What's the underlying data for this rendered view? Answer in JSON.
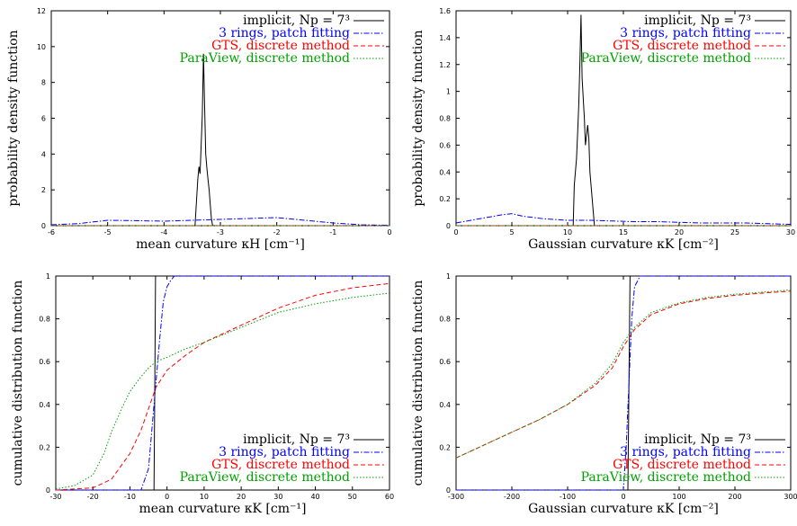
{
  "chart_data": [
    {
      "type": "line",
      "xlabel": "mean curvature κH [cm⁻¹]",
      "ylabel": "probability density function",
      "xlim": [
        -6,
        0
      ],
      "ylim": [
        0,
        12
      ],
      "xticks": [
        "-6",
        "-5",
        "-4",
        "-3",
        "-2",
        "-1",
        "0"
      ],
      "yticks": [
        "0",
        "2",
        "4",
        "6",
        "8",
        "10",
        "12"
      ],
      "legend_position": "top-right",
      "series": [
        {
          "name": "implicit, Np = 7³",
          "color": "#000000",
          "dash": "solid",
          "x": [
            -6,
            -3.45,
            -3.42,
            -3.4,
            -3.38,
            -3.36,
            -3.34,
            -3.32,
            -3.3,
            -3.28,
            -3.26,
            -3.24,
            -3.22,
            -3.2,
            -3.18,
            -3.16,
            -3.14,
            -3.12,
            0
          ],
          "y": [
            0,
            0,
            1.6,
            2.6,
            3.3,
            2.9,
            4.6,
            6.2,
            9.6,
            6.6,
            4.0,
            3.2,
            2.6,
            2.0,
            1.2,
            0.4,
            0.05,
            0,
            0
          ]
        },
        {
          "name": "3 rings, patch fitting",
          "color": "#0000ff",
          "dash": "dashdot",
          "x": [
            -6,
            -5.5,
            -5,
            -4.5,
            -4,
            -3.5,
            -3,
            -2.5,
            -2,
            -1.5,
            -1,
            -0.5,
            0
          ],
          "y": [
            0.05,
            0.12,
            0.3,
            0.28,
            0.25,
            0.3,
            0.35,
            0.4,
            0.45,
            0.3,
            0.15,
            0.05,
            0.02
          ]
        },
        {
          "name": "GTS, discrete method",
          "color": "#ff0000",
          "dash": "dashed",
          "x": [
            -6,
            0
          ],
          "y": [
            0,
            0
          ]
        },
        {
          "name": "ParaView, discrete method",
          "color": "#00a000",
          "dash": "dotted",
          "x": [
            -6,
            0
          ],
          "y": [
            0,
            0
          ]
        }
      ]
    },
    {
      "type": "line",
      "xlabel": "Gaussian curvature κK [cm⁻²]",
      "ylabel": "probability density function",
      "xlim": [
        0,
        30
      ],
      "ylim": [
        0,
        1.6
      ],
      "xticks": [
        "0",
        "5",
        "10",
        "15",
        "20",
        "25",
        "30"
      ],
      "yticks": [
        "0",
        "0.2",
        "0.4",
        "0.6",
        "0.8",
        "1",
        "1.2",
        "1.4",
        "1.6"
      ],
      "legend_position": "top-right",
      "series": [
        {
          "name": "implicit, Np = 7³",
          "color": "#000000",
          "dash": "solid",
          "x": [
            0,
            10.5,
            10.6,
            10.8,
            10.9,
            11.0,
            11.1,
            11.2,
            11.3,
            11.5,
            11.6,
            11.8,
            11.9,
            12.0,
            12.2,
            12.4,
            30
          ],
          "y": [
            0,
            0,
            0.3,
            0.5,
            0.7,
            0.9,
            1.2,
            1.57,
            1.1,
            0.8,
            0.6,
            0.75,
            0.65,
            0.4,
            0.2,
            0,
            0
          ]
        },
        {
          "name": "3 rings, patch fitting",
          "color": "#0000ff",
          "dash": "dashdot",
          "x": [
            0,
            2,
            4,
            5,
            6,
            8,
            10,
            12,
            14,
            16,
            18,
            20,
            22,
            24,
            26,
            28,
            30
          ],
          "y": [
            0.02,
            0.05,
            0.08,
            0.09,
            0.07,
            0.05,
            0.04,
            0.04,
            0.035,
            0.03,
            0.03,
            0.025,
            0.02,
            0.02,
            0.02,
            0.015,
            0.01
          ]
        },
        {
          "name": "GTS, discrete method",
          "color": "#ff0000",
          "dash": "dashed",
          "x": [
            0,
            30
          ],
          "y": [
            0,
            0
          ]
        },
        {
          "name": "ParaView, discrete method",
          "color": "#00a000",
          "dash": "dotted",
          "x": [
            0,
            30
          ],
          "y": [
            0,
            0
          ]
        }
      ]
    },
    {
      "type": "line",
      "xlabel": "mean curvature κK [cm⁻¹]",
      "ylabel": "cumulative distribution function",
      "xlim": [
        -30,
        60
      ],
      "ylim": [
        0,
        1
      ],
      "xticks": [
        "-30",
        "-20",
        "-10",
        "0",
        "10",
        "20",
        "30",
        "40",
        "50",
        "60"
      ],
      "yticks": [
        "0",
        "0.2",
        "0.4",
        "0.6",
        "0.8",
        "1"
      ],
      "legend_position": "bottom-right",
      "series": [
        {
          "name": "implicit, Np = 7³",
          "color": "#000000",
          "dash": "solid",
          "x": [
            -30,
            -3.5,
            -3.3,
            -3.1,
            60
          ],
          "y": [
            0,
            0,
            0.5,
            1,
            1
          ]
        },
        {
          "name": "3 rings, patch fitting",
          "color": "#0000ff",
          "dash": "dashdot",
          "x": [
            -30,
            -7,
            -5,
            -4,
            -3,
            -2,
            -1,
            0,
            1,
            2,
            60
          ],
          "y": [
            0,
            0,
            0.1,
            0.3,
            0.5,
            0.7,
            0.88,
            0.95,
            0.98,
            1,
            1
          ]
        },
        {
          "name": "GTS, discrete method",
          "color": "#ff0000",
          "dash": "dashed",
          "x": [
            -30,
            -20,
            -15,
            -10,
            -7,
            -5,
            -3,
            0,
            5,
            10,
            20,
            30,
            40,
            50,
            60
          ],
          "y": [
            0,
            0.01,
            0.05,
            0.17,
            0.28,
            0.38,
            0.48,
            0.56,
            0.63,
            0.69,
            0.77,
            0.85,
            0.91,
            0.945,
            0.965
          ]
        },
        {
          "name": "ParaView, discrete method",
          "color": "#00a000",
          "dash": "dotted",
          "x": [
            -30,
            -25,
            -20,
            -17,
            -15,
            -12,
            -10,
            -7,
            -5,
            -3,
            0,
            5,
            10,
            20,
            30,
            40,
            50,
            60
          ],
          "y": [
            0.005,
            0.02,
            0.07,
            0.17,
            0.27,
            0.39,
            0.46,
            0.53,
            0.57,
            0.6,
            0.62,
            0.66,
            0.69,
            0.76,
            0.83,
            0.87,
            0.9,
            0.92
          ]
        }
      ]
    },
    {
      "type": "line",
      "xlabel": "Gaussian curvature κK [cm⁻²]",
      "ylabel": "cumulative distribution function",
      "xlim": [
        -300,
        300
      ],
      "ylim": [
        0,
        1
      ],
      "xticks": [
        "-300",
        "-200",
        "-100",
        "0",
        "100",
        "200",
        "300"
      ],
      "yticks": [
        "0",
        "0.2",
        "0.4",
        "0.6",
        "0.8",
        "1"
      ],
      "legend_position": "bottom-right",
      "series": [
        {
          "name": "implicit, Np = 7³",
          "color": "#000000",
          "dash": "solid",
          "x": [
            -300,
            8,
            10,
            12,
            300
          ],
          "y": [
            0,
            0,
            0.5,
            1,
            1
          ]
        },
        {
          "name": "3 rings, patch fitting",
          "color": "#0000ff",
          "dash": "dashdot",
          "x": [
            -300,
            0,
            5,
            10,
            15,
            20,
            30,
            300
          ],
          "y": [
            0,
            0,
            0.2,
            0.5,
            0.8,
            0.95,
            1,
            1
          ]
        },
        {
          "name": "GTS, discrete method",
          "color": "#ff0000",
          "dash": "dashed",
          "x": [
            -300,
            -250,
            -200,
            -150,
            -100,
            -50,
            -20,
            0,
            20,
            50,
            100,
            150,
            200,
            250,
            300
          ],
          "y": [
            0.15,
            0.21,
            0.27,
            0.33,
            0.4,
            0.49,
            0.57,
            0.67,
            0.75,
            0.82,
            0.87,
            0.895,
            0.91,
            0.92,
            0.93
          ]
        },
        {
          "name": "ParaView, discrete method",
          "color": "#00a000",
          "dash": "dotted",
          "x": [
            -300,
            -250,
            -200,
            -150,
            -100,
            -50,
            -20,
            0,
            20,
            50,
            100,
            150,
            200,
            250,
            300
          ],
          "y": [
            0.15,
            0.21,
            0.27,
            0.33,
            0.4,
            0.5,
            0.59,
            0.69,
            0.76,
            0.83,
            0.875,
            0.9,
            0.915,
            0.925,
            0.935
          ]
        }
      ]
    }
  ]
}
